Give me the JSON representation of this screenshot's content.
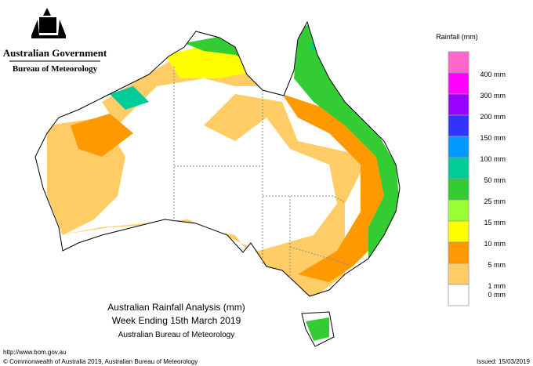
{
  "header": {
    "government": "Australian Government",
    "bureau": "Bureau of Meteorology"
  },
  "legend": {
    "title": "Rainfall (mm)",
    "items": [
      {
        "color": "#ff66cc",
        "label": "400 mm"
      },
      {
        "color": "#ff00ff",
        "label": "300 mm"
      },
      {
        "color": "#9900ff",
        "label": "200 mm"
      },
      {
        "color": "#3333ff",
        "label": "150 mm"
      },
      {
        "color": "#0099ff",
        "label": "100 mm"
      },
      {
        "color": "#00cc99",
        "label": "50 mm"
      },
      {
        "color": "#33cc33",
        "label": "25 mm"
      },
      {
        "color": "#99ff33",
        "label": "15 mm"
      },
      {
        "color": "#ffff00",
        "label": "10 mm"
      },
      {
        "color": "#ff9900",
        "label": "5 mm"
      },
      {
        "color": "#ffcc66",
        "label": "1 mm"
      },
      {
        "color": "#ffffff",
        "label": "0 mm"
      }
    ]
  },
  "map_title": {
    "line1": "Australian Rainfall Analysis (mm)",
    "line2": "Week Ending 15th March 2019",
    "line3": "Australian Bureau of Meteorology"
  },
  "footer": {
    "url": "http://www.bom.gov.au",
    "copyright": "© Commonwealth of Australia 2019, Australian Bureau of Meteorology",
    "issued": "Issued: 15/03/2019"
  }
}
